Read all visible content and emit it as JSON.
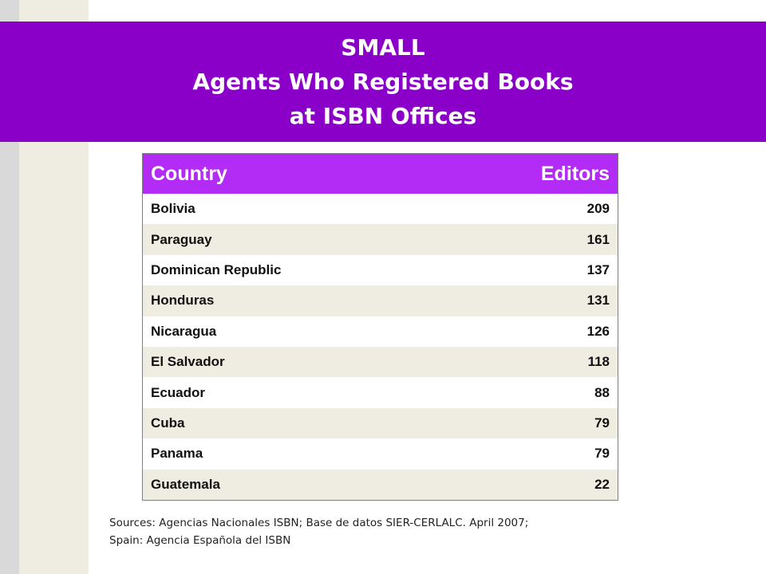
{
  "title": {
    "line1": "SMALL",
    "line2": "Agents Who Registered Books",
    "line3": "at ISBN Offices"
  },
  "chart_data": {
    "type": "table",
    "columns": [
      "Country",
      "Editors"
    ],
    "rows": [
      {
        "country": "Bolivia",
        "editors": "209"
      },
      {
        "country": "Paraguay",
        "editors": "161"
      },
      {
        "country": "Dominican Republic",
        "editors": "137"
      },
      {
        "country": "Honduras",
        "editors": "131"
      },
      {
        "country": "Nicaragua",
        "editors": "126"
      },
      {
        "country": "El Salvador",
        "editors": "118"
      },
      {
        "country": "Ecuador",
        "editors": "88"
      },
      {
        "country": "Cuba",
        "editors": "79"
      },
      {
        "country": "Panama",
        "editors": "79"
      },
      {
        "country": "Guatemala",
        "editors": "22"
      }
    ]
  },
  "sources": {
    "line1": "Sources: Agencias Nacionales ISBN; Base de datos SIER-CERLALC. April 2007;",
    "line2": "Spain: Agencia Española del ISBN"
  },
  "colors": {
    "banner": "#8a00c8",
    "header": "#b22cf5",
    "row_alt": "#efece2"
  }
}
